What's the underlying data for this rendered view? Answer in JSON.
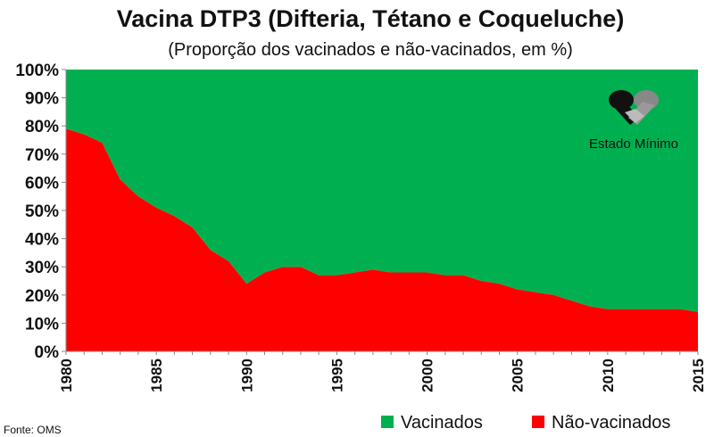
{
  "chart_data": {
    "type": "area",
    "stacked": true,
    "title": "Vacina DTP3 (Difteria, Tétano e Coqueluche)",
    "subtitle": "(Proporção dos vacinados e não-vacinados, em %)",
    "x": [
      1980,
      1981,
      1982,
      1983,
      1984,
      1985,
      1986,
      1987,
      1988,
      1989,
      1990,
      1991,
      1992,
      1993,
      1994,
      1995,
      1996,
      1997,
      1998,
      1999,
      2000,
      2001,
      2002,
      2003,
      2004,
      2005,
      2006,
      2007,
      2008,
      2009,
      2010,
      2011,
      2012,
      2013,
      2014,
      2015
    ],
    "xlim": [
      1980,
      2015
    ],
    "x_ticks": [
      "1980",
      "1985",
      "1990",
      "1995",
      "2000",
      "2005",
      "2010",
      "2015"
    ],
    "ylim": [
      0,
      100
    ],
    "y_ticks": [
      "0%",
      "10%",
      "20%",
      "30%",
      "40%",
      "50%",
      "60%",
      "70%",
      "80%",
      "90%",
      "100%"
    ],
    "series": [
      {
        "name": "Vacinados",
        "color": "#00b050",
        "values": [
          21,
          23,
          26,
          39,
          45,
          49,
          52,
          56,
          64,
          68,
          76,
          72,
          70,
          70,
          73,
          73,
          72,
          71,
          72,
          72,
          72,
          73,
          73,
          75,
          76,
          78,
          79,
          80,
          82,
          84,
          85,
          85,
          85,
          85,
          85,
          86
        ]
      },
      {
        "name": "Não-vacinados",
        "color": "#ff0000",
        "values": [
          79,
          77,
          74,
          61,
          55,
          51,
          48,
          44,
          36,
          32,
          24,
          28,
          30,
          30,
          27,
          27,
          28,
          29,
          28,
          28,
          28,
          27,
          27,
          25,
          24,
          22,
          21,
          20,
          18,
          16,
          15,
          15,
          15,
          15,
          15,
          14
        ]
      }
    ],
    "legend": "bottom-right",
    "grid": false
  },
  "source_note": "Fonte: OMS",
  "logo_text": "Estado Mínimo"
}
